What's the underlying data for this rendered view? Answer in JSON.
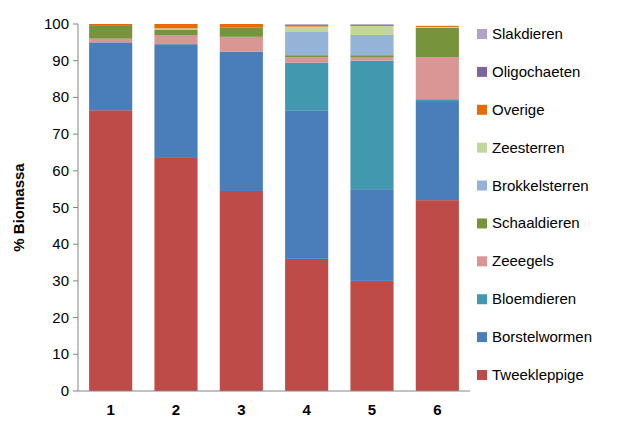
{
  "chart_data": {
    "type": "bar",
    "stacked": true,
    "y_label": "% Biomassa",
    "categories": [
      "1",
      "2",
      "3",
      "4",
      "5",
      "6"
    ],
    "ylim": [
      0,
      100
    ],
    "yticks": [
      0,
      10,
      20,
      30,
      40,
      50,
      60,
      70,
      80,
      90,
      100
    ],
    "grid": false,
    "legend": "right",
    "series": [
      {
        "name": "Tweekleppige",
        "color": "#be4b48",
        "values": [
          76.5,
          63.5,
          54.5,
          36,
          30,
          52
        ]
      },
      {
        "name": "Borstelwormen",
        "color": "#4a7ebb",
        "values": [
          18.5,
          31,
          38,
          40.5,
          25,
          27
        ]
      },
      {
        "name": "Bloemdieren",
        "color": "#4198af",
        "values": [
          0,
          0,
          0,
          13,
          35,
          0.5
        ]
      },
      {
        "name": "Zeeegels",
        "color": "#d99694",
        "values": [
          1,
          2.5,
          4,
          1.5,
          1,
          11.5
        ]
      },
      {
        "name": "Schaaldieren",
        "color": "#77933c",
        "values": [
          3.7,
          1.5,
          2.5,
          0.5,
          0.5,
          8
        ]
      },
      {
        "name": "Brokkelsterren",
        "color": "#95b3d7",
        "values": [
          0,
          0,
          0,
          6.5,
          5.5,
          0
        ]
      },
      {
        "name": "Zeesterren",
        "color": "#c3d69b",
        "values": [
          0,
          0.3,
          0,
          1.3,
          2.5,
          0.2
        ]
      },
      {
        "name": "Overige",
        "color": "#e46c0a",
        "values": [
          0.3,
          1.2,
          1,
          0.2,
          0,
          0.3
        ]
      },
      {
        "name": "Oligochaeten",
        "color": "#7f659f",
        "values": [
          0,
          0,
          0,
          0.3,
          0.3,
          0
        ]
      },
      {
        "name": "Slakdieren",
        "color": "#b3a2c7",
        "values": [
          0,
          0,
          0,
          0.2,
          0.2,
          0
        ]
      }
    ]
  }
}
